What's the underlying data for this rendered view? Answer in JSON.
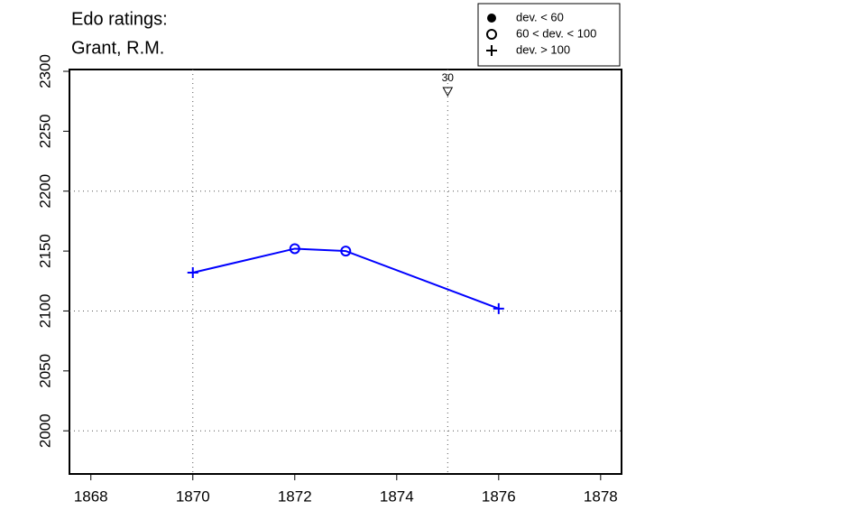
{
  "chart_data": {
    "type": "line",
    "title": "Edo ratings:",
    "subtitle": "Grant, R.M.",
    "x": [
      1870,
      1872,
      1873,
      1876
    ],
    "series": [
      {
        "color": "#0000ff",
        "values": [
          2132,
          2152,
          2150,
          2102
        ],
        "markers": [
          "plus",
          "circle",
          "circle",
          "plus"
        ]
      }
    ],
    "xlim": [
      1867.58,
      1878.41
    ],
    "xticks": [
      1868,
      1870,
      1872,
      1874,
      1876,
      1878
    ],
    "ylim": [
      1964,
      2301.5
    ],
    "yticks": [
      2000,
      2050,
      2100,
      2150,
      2200,
      2250,
      2300
    ],
    "grid_x": [
      1870,
      1875
    ],
    "grid_y": [
      2000,
      2100,
      2200
    ],
    "annotations": [
      {
        "x": 1875,
        "label": "30"
      }
    ],
    "legend": [
      {
        "label": "dev. < 60",
        "marker": "dot"
      },
      {
        "label": "60 < dev. < 100",
        "marker": "circle"
      },
      {
        "label": "dev. > 100",
        "marker": "plus"
      }
    ]
  }
}
